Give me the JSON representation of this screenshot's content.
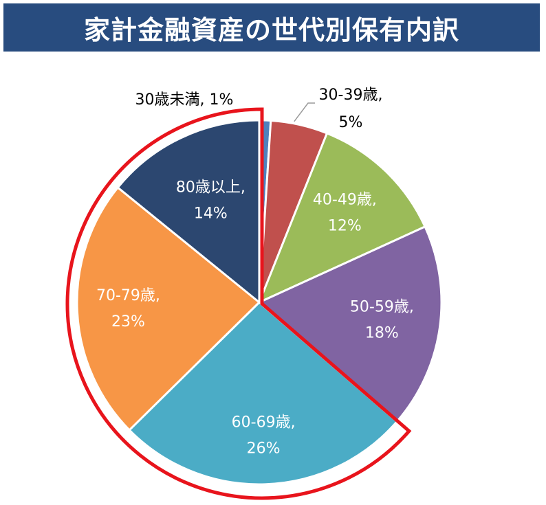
{
  "title": "家計金融資産の世代別保有内訳",
  "chart_data": {
    "type": "pie",
    "title": "家計金融資産の世代別保有内訳",
    "categories": [
      "30歳未満",
      "30-39歳",
      "40-49歳",
      "50-59歳",
      "60-69歳",
      "70-79歳",
      "80歳以上"
    ],
    "values": [
      1,
      5,
      12,
      18,
      26,
      23,
      14
    ],
    "value_labels": [
      "1%",
      "5%",
      "12%",
      "18%",
      "26%",
      "23%",
      "14%"
    ],
    "colors": [
      "#4f81bd",
      "#c0504d",
      "#9bbb59",
      "#8064a2",
      "#4bacc6",
      "#f79646",
      "#2c4770"
    ],
    "label_colors": [
      "#000000",
      "#000000",
      "#ffffff",
      "#ffffff",
      "#ffffff",
      "#ffffff",
      "#ffffff"
    ],
    "highlight": {
      "categories": [
        "60-69歳",
        "70-79歳",
        "80歳以上"
      ],
      "color": "#e8141c"
    }
  }
}
